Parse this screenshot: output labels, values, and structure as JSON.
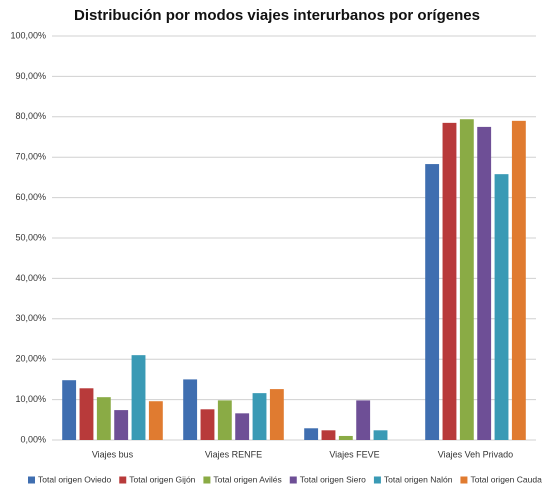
{
  "chart_data": {
    "type": "bar",
    "title": "Distribución por modos viajes interurbanos por orígenes",
    "categories": [
      "Viajes bus",
      "Viajes RENFE",
      "Viajes FEVE",
      "Viajes Veh Privado"
    ],
    "series": [
      {
        "name": "Total origen Oviedo",
        "color": "#3f6eb0",
        "values": [
          14.8,
          15.0,
          2.9,
          68.3
        ]
      },
      {
        "name": "Total origen Gijón",
        "color": "#b83a3a",
        "values": [
          12.8,
          7.6,
          2.4,
          78.5
        ]
      },
      {
        "name": "Total origen Avilés",
        "color": "#8aab45",
        "values": [
          10.6,
          9.8,
          1.0,
          79.4
        ]
      },
      {
        "name": "Total origen Siero",
        "color": "#6e4f96",
        "values": [
          7.4,
          6.6,
          9.8,
          77.5
        ]
      },
      {
        "name": "Total origen Nalón",
        "color": "#3a9ab5",
        "values": [
          21.0,
          11.6,
          2.4,
          65.8
        ]
      },
      {
        "name": "Total origen Caudal",
        "color": "#e07b30",
        "values": [
          9.6,
          12.6,
          0,
          79.0
        ]
      }
    ],
    "ylim": [
      0,
      100
    ],
    "yticks": [
      {
        "value": 0,
        "label": "0,00%"
      },
      {
        "value": 10,
        "label": "10,00%"
      },
      {
        "value": 20,
        "label": "20,00%"
      },
      {
        "value": 30,
        "label": "30,00%"
      },
      {
        "value": 40,
        "label": "40,00%"
      },
      {
        "value": 50,
        "label": "50,00%"
      },
      {
        "value": 60,
        "label": "60,00%"
      },
      {
        "value": 70,
        "label": "70,00%"
      },
      {
        "value": 80,
        "label": "80,00%"
      },
      {
        "value": 90,
        "label": "90,00%"
      },
      {
        "value": 100,
        "label": "100,00%"
      }
    ],
    "grid": true,
    "legend": "bottom"
  }
}
